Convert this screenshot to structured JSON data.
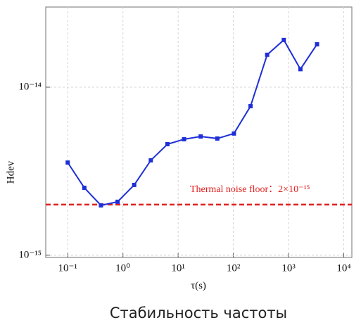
{
  "chart_data": {
    "type": "line",
    "log_x": true,
    "log_y": true,
    "grid": true,
    "x_label": "τ(s)",
    "y_label": "Hdev",
    "caption": "Стабильность частоты",
    "xlim": [
      0.04,
      14000
    ],
    "ylim": [
      9.7e-16,
      3e-14
    ],
    "xticks": [
      {
        "value": 0.1,
        "label": "10⁻¹"
      },
      {
        "value": 1,
        "label": "10⁰"
      },
      {
        "value": 10,
        "label": "10¹"
      },
      {
        "value": 100,
        "label": "10²"
      },
      {
        "value": 1000,
        "label": "10³"
      },
      {
        "value": 10000,
        "label": "10⁴"
      }
    ],
    "yticks": [
      {
        "value": 1e-15,
        "label": "10⁻¹⁵"
      },
      {
        "value": 1e-14,
        "label": "10⁻¹⁴"
      }
    ],
    "series": [
      {
        "color": "#1f2fd6",
        "x": [
          0.1,
          0.2,
          0.4,
          0.8,
          1.6,
          3.2,
          6.4,
          12.8,
          25.6,
          51.2,
          102.4,
          204.8,
          409.6,
          819.2,
          1638.4,
          3276.8
        ],
        "values": [
          3.56e-15,
          2.52e-15,
          1.98e-15,
          2.08e-15,
          2.62e-15,
          3.67e-15,
          4.58e-15,
          4.9e-15,
          5.09e-15,
          4.95e-15,
          5.3e-15,
          7.71e-15,
          1.56e-14,
          1.91e-14,
          1.28e-14,
          1.8e-14
        ]
      }
    ],
    "threshold": {
      "value": 2e-15,
      "color": "#e02020",
      "label": "Thermal noise floor：2×10⁻¹⁵"
    }
  }
}
